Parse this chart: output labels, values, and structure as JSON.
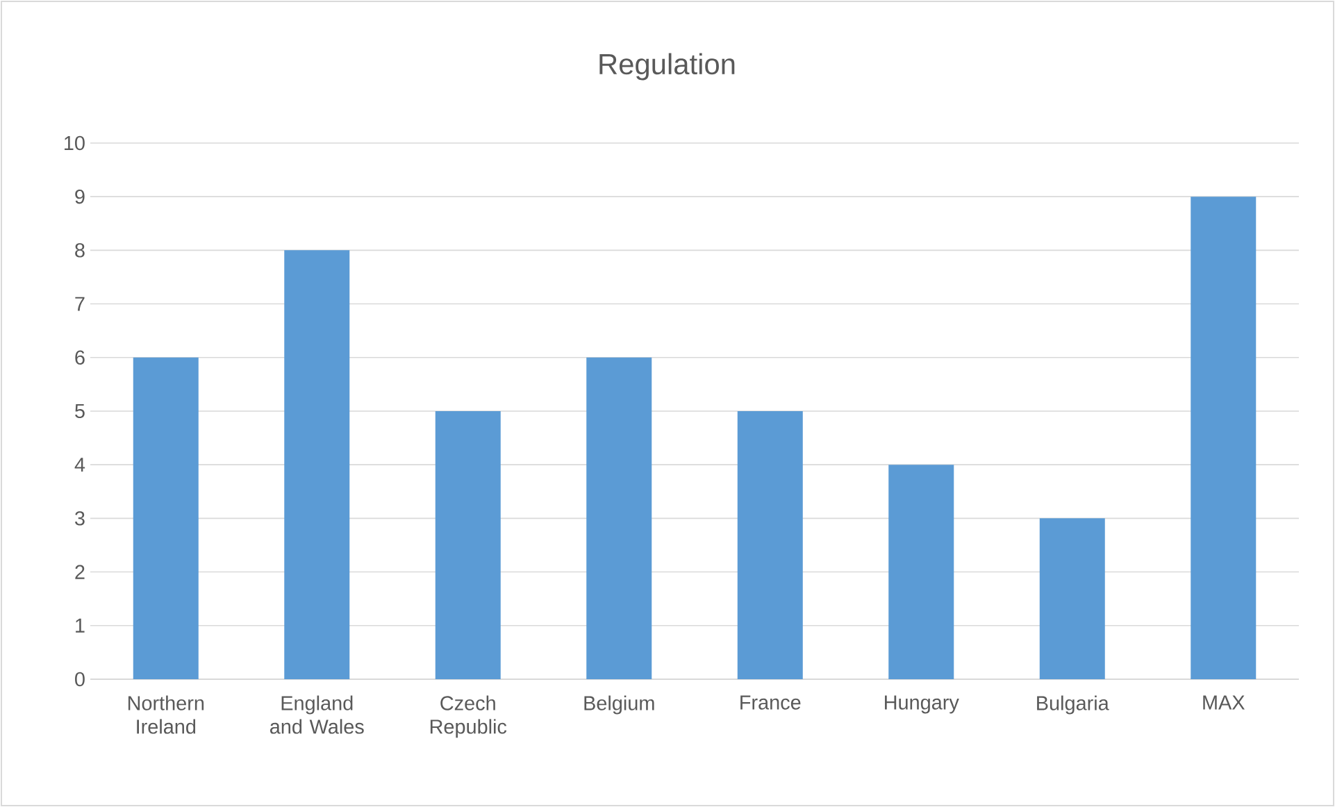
{
  "chart_data": {
    "type": "bar",
    "title": "Regulation",
    "categories": [
      "Northern Ireland",
      "England and Wales",
      "Czech Republic",
      "Belgium",
      "France",
      "Hungary",
      "Bulgaria",
      "MAX"
    ],
    "values": [
      6,
      8,
      5,
      6,
      5,
      4,
      3,
      9
    ],
    "color": "#5b9bd5",
    "ylim": [
      0,
      10
    ],
    "yticks": [
      0,
      1,
      2,
      3,
      4,
      5,
      6,
      7,
      8,
      9,
      10
    ],
    "grid": "y"
  }
}
